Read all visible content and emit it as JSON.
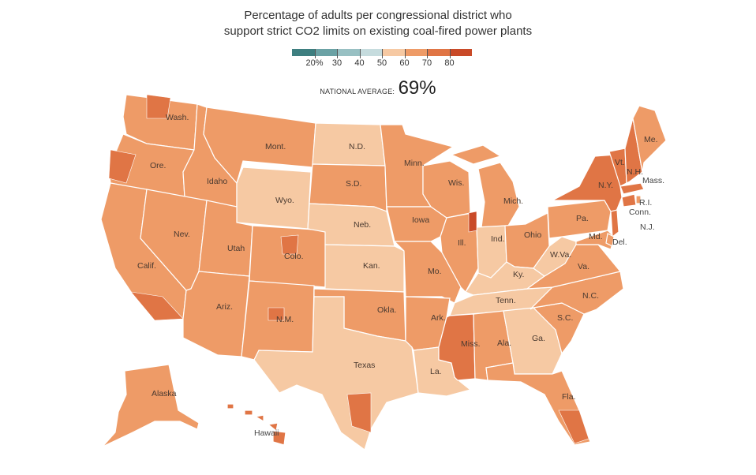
{
  "title_line1": "Percentage of adults per congressional district who",
  "title_line2": "support strict CO2 limits on existing coal-fired power plants",
  "legend": {
    "labels": [
      "20%",
      "30",
      "40",
      "50",
      "60",
      "70",
      "80"
    ],
    "colors": [
      "#3e7f80",
      "#6ba2a5",
      "#98c0c3",
      "#c6dcde",
      "#f6c9a3",
      "#ee9b67",
      "#e07545",
      "#c94a28"
    ]
  },
  "national_average_label": "NATIONAL AVERAGE:",
  "national_average_value": "69%",
  "colors": {
    "light": "#f6c9a3",
    "mid": "#ee9b67",
    "dark": "#e07545",
    "darkest": "#c94a28"
  },
  "states": [
    {
      "name": "Wash.",
      "cls": "mid"
    },
    {
      "name": "Ore.",
      "cls": "mid"
    },
    {
      "name": "Calif.",
      "cls": "mid"
    },
    {
      "name": "Idaho",
      "cls": "mid"
    },
    {
      "name": "Nev.",
      "cls": "mid"
    },
    {
      "name": "Mont.",
      "cls": "mid"
    },
    {
      "name": "Wyo.",
      "cls": "light"
    },
    {
      "name": "Utah",
      "cls": "mid"
    },
    {
      "name": "Ariz.",
      "cls": "mid"
    },
    {
      "name": "Colo.",
      "cls": "mid"
    },
    {
      "name": "N.M.",
      "cls": "mid"
    },
    {
      "name": "N.D.",
      "cls": "light"
    },
    {
      "name": "S.D.",
      "cls": "mid"
    },
    {
      "name": "Neb.",
      "cls": "light"
    },
    {
      "name": "Kan.",
      "cls": "light"
    },
    {
      "name": "Okla.",
      "cls": "mid"
    },
    {
      "name": "Texas",
      "cls": "light"
    },
    {
      "name": "Minn.",
      "cls": "mid"
    },
    {
      "name": "Iowa",
      "cls": "mid"
    },
    {
      "name": "Mo.",
      "cls": "mid"
    },
    {
      "name": "Ark.",
      "cls": "mid"
    },
    {
      "name": "La.",
      "cls": "light"
    },
    {
      "name": "Wis.",
      "cls": "mid"
    },
    {
      "name": "Ill.",
      "cls": "mid"
    },
    {
      "name": "Mich.",
      "cls": "mid"
    },
    {
      "name": "Ind.",
      "cls": "light"
    },
    {
      "name": "Ohio",
      "cls": "mid"
    },
    {
      "name": "Ky.",
      "cls": "light"
    },
    {
      "name": "Tenn.",
      "cls": "light"
    },
    {
      "name": "Miss.",
      "cls": "dark"
    },
    {
      "name": "Ala.",
      "cls": "mid"
    },
    {
      "name": "Ga.",
      "cls": "light"
    },
    {
      "name": "Fla.",
      "cls": "mid"
    },
    {
      "name": "S.C.",
      "cls": "mid"
    },
    {
      "name": "N.C.",
      "cls": "mid"
    },
    {
      "name": "Va.",
      "cls": "mid"
    },
    {
      "name": "W.Va.",
      "cls": "light"
    },
    {
      "name": "Pa.",
      "cls": "mid"
    },
    {
      "name": "N.Y.",
      "cls": "dark"
    },
    {
      "name": "Vt.",
      "cls": "dark"
    },
    {
      "name": "N.H.",
      "cls": "dark"
    },
    {
      "name": "Me.",
      "cls": "mid"
    },
    {
      "name": "Md.",
      "cls": "mid"
    },
    {
      "name": "Alaska",
      "cls": "mid"
    },
    {
      "name": "Hawaii",
      "cls": "dark"
    }
  ],
  "outside_labels": {
    "mass": "Mass.",
    "ri": "R.I.",
    "conn": "Conn.",
    "nj": "N.J.",
    "del": "Del.",
    "hawaii": "Hawaii"
  }
}
